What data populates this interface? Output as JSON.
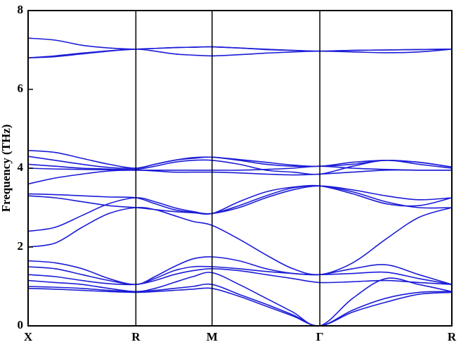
{
  "chart_data": {
    "type": "line",
    "y_label": "Frequency (THz)",
    "x": [
      0,
      0.177,
      0.354,
      0.53,
      0.707,
      0.832,
      0.957,
      1.082,
      1.207,
      1.384,
      1.561,
      1.737,
      1.914,
      2.13,
      2.347,
      2.563,
      2.78
    ],
    "xlim": [
      0,
      2.78
    ],
    "xticks": [
      {
        "value": 0,
        "label": "X"
      },
      {
        "value": 0.707,
        "label": "R"
      },
      {
        "value": 1.207,
        "label": "M"
      },
      {
        "value": 1.914,
        "label": "Γ"
      },
      {
        "value": 2.78,
        "label": "R"
      }
    ],
    "ylim": [
      0,
      8
    ],
    "yticks": [
      0,
      2,
      4,
      6,
      8
    ],
    "color": "#1c1cd8",
    "series": [
      {
        "values": [
          0.95,
          0.93,
          0.9,
          0.87,
          0.85,
          0.87,
          0.9,
          0.93,
          0.95,
          0.75,
          0.5,
          0.25,
          0,
          0.35,
          0.6,
          0.8,
          0.85
        ]
      },
      {
        "values": [
          1.0,
          0.98,
          0.95,
          0.9,
          0.87,
          0.9,
          0.95,
          1.0,
          1.05,
          0.8,
          0.55,
          0.28,
          0,
          0.4,
          0.7,
          0.85,
          0.87
        ]
      },
      {
        "values": [
          1.15,
          1.1,
          1.05,
          0.95,
          0.87,
          0.95,
          1.1,
          1.25,
          1.35,
          1.05,
          0.7,
          0.35,
          0,
          0.7,
          1.2,
          1.05,
          0.87
        ]
      },
      {
        "values": [
          1.3,
          1.25,
          1.15,
          1.07,
          1.05,
          1.15,
          1.3,
          1.4,
          1.45,
          1.4,
          1.3,
          1.2,
          1.1,
          1.12,
          1.15,
          1.1,
          1.05
        ]
      },
      {
        "values": [
          1.5,
          1.45,
          1.3,
          1.15,
          1.05,
          1.2,
          1.4,
          1.5,
          1.5,
          1.45,
          1.38,
          1.33,
          1.3,
          1.45,
          1.55,
          1.3,
          1.05
        ]
      },
      {
        "values": [
          1.65,
          1.6,
          1.45,
          1.2,
          1.05,
          1.25,
          1.5,
          1.7,
          1.75,
          1.65,
          1.45,
          1.33,
          1.3,
          1.33,
          1.36,
          1.2,
          1.05
        ]
      },
      {
        "values": [
          2.0,
          2.1,
          2.5,
          2.85,
          3.0,
          2.95,
          2.8,
          2.65,
          2.55,
          2.2,
          1.8,
          1.45,
          1.3,
          1.6,
          2.2,
          2.75,
          3.0
        ]
      },
      {
        "values": [
          2.4,
          2.5,
          2.8,
          3.1,
          3.25,
          3.15,
          3.0,
          2.9,
          2.85,
          3.05,
          3.3,
          3.5,
          3.55,
          3.4,
          3.15,
          3.0,
          3.0
        ]
      },
      {
        "values": [
          3.3,
          3.25,
          3.15,
          3.05,
          3.0,
          2.95,
          2.9,
          2.87,
          2.85,
          3.0,
          3.25,
          3.45,
          3.55,
          3.45,
          3.3,
          3.2,
          3.25
        ]
      },
      {
        "values": [
          3.35,
          3.33,
          3.3,
          3.27,
          3.25,
          3.1,
          2.95,
          2.88,
          2.85,
          3.15,
          3.4,
          3.52,
          3.55,
          3.35,
          3.1,
          3.05,
          3.25
        ]
      },
      {
        "values": [
          3.6,
          3.75,
          3.85,
          3.93,
          3.95,
          3.93,
          3.9,
          3.9,
          3.9,
          3.88,
          3.85,
          3.83,
          3.85,
          3.9,
          3.95,
          3.95,
          3.95
        ]
      },
      {
        "values": [
          4.0,
          3.98,
          3.97,
          3.96,
          3.95,
          3.95,
          3.95,
          3.95,
          3.95,
          3.95,
          3.97,
          4.0,
          4.05,
          4.0,
          3.97,
          3.95,
          3.95
        ]
      },
      {
        "values": [
          4.1,
          4.05,
          4.0,
          3.98,
          3.97,
          4.05,
          4.15,
          4.2,
          4.2,
          4.1,
          3.95,
          3.9,
          3.85,
          4.05,
          4.2,
          4.1,
          4.0
        ]
      },
      {
        "values": [
          4.3,
          4.2,
          4.1,
          4.02,
          4.0,
          4.1,
          4.2,
          4.25,
          4.28,
          4.2,
          4.1,
          4.05,
          4.05,
          4.1,
          4.2,
          4.15,
          4.03
        ]
      },
      {
        "values": [
          4.45,
          4.4,
          4.25,
          4.1,
          4.0,
          4.1,
          4.2,
          4.27,
          4.28,
          4.22,
          4.15,
          4.08,
          4.05,
          4.15,
          4.2,
          4.15,
          4.03
        ]
      },
      {
        "values": [
          6.8,
          6.85,
          6.92,
          6.98,
          7.02,
          6.97,
          6.9,
          6.87,
          6.85,
          6.88,
          6.92,
          6.95,
          6.97,
          6.95,
          6.93,
          6.95,
          7.02
        ]
      },
      {
        "values": [
          6.8,
          6.83,
          6.9,
          6.97,
          7.02,
          7.04,
          7.06,
          7.07,
          7.08,
          7.05,
          7.01,
          6.99,
          6.97,
          6.99,
          7.0,
          7.01,
          7.02
        ]
      },
      {
        "values": [
          7.3,
          7.25,
          7.12,
          7.05,
          7.02,
          7.04,
          7.06,
          7.07,
          7.08,
          7.05,
          7.02,
          6.99,
          6.97,
          6.99,
          7.0,
          7.01,
          7.02
        ]
      }
    ]
  }
}
